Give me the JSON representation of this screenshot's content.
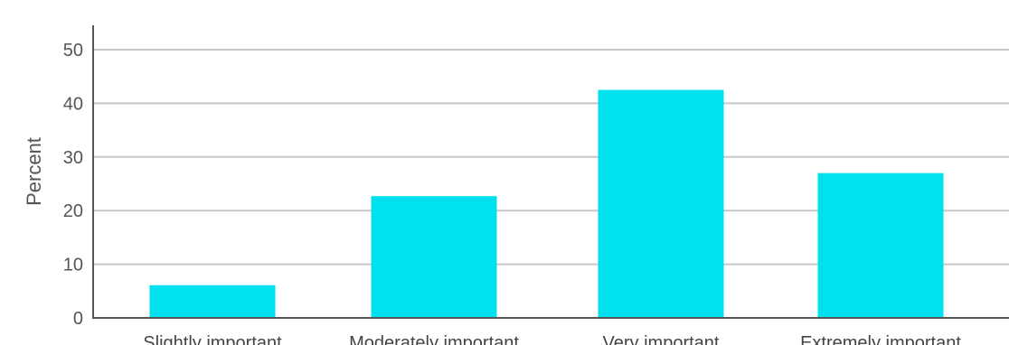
{
  "chart_data": {
    "type": "bar",
    "title": "",
    "xlabel": "",
    "ylabel": "Percent",
    "categories": [
      "Slightly important",
      "Moderately important",
      "Very important",
      "Extremely important"
    ],
    "values": [
      6.1,
      22.7,
      42.5,
      27.0
    ],
    "ylim": [
      0,
      50
    ],
    "yticks": [
      0,
      10,
      20,
      30,
      40,
      50
    ],
    "grid": true,
    "legend": "none",
    "colors": {
      "bar": "#00e1ef",
      "grid": "#c8c8c8",
      "axis": "#555555"
    }
  }
}
